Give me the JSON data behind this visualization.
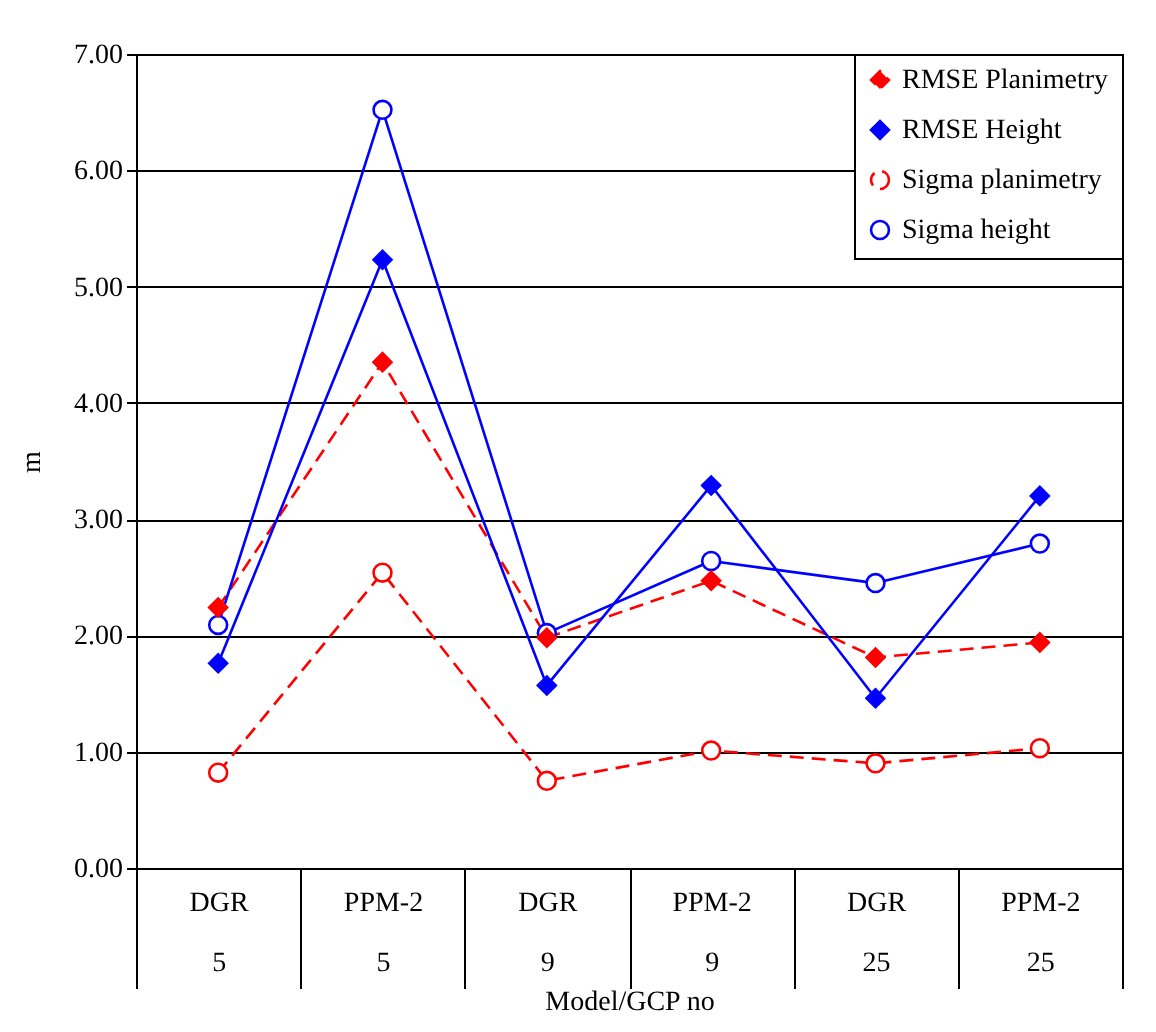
{
  "chart_data": {
    "type": "line",
    "xlabel": "Model/GCP no",
    "ylabel": "m",
    "categories": [
      "DGR\n5",
      "PPM-2\n5",
      "DGR\n9",
      "PPM-2\n9",
      "DGR\n25",
      "PPM-2\n25"
    ],
    "series": [
      {
        "name": "RMSE Planimetry",
        "color": "#ff0000",
        "marker": "diamond",
        "line_style": "dashed",
        "values": [
          2.24,
          4.35,
          1.98,
          2.47,
          1.81,
          1.94
        ]
      },
      {
        "name": "RMSE Height",
        "color": "#0000ff",
        "marker": "diamond",
        "line_style": "solid",
        "values": [
          1.76,
          5.23,
          1.57,
          3.29,
          1.46,
          3.2
        ]
      },
      {
        "name": "Sigma planimetry",
        "color": "#ff0000",
        "marker": "circle",
        "line_style": "dashed",
        "values": [
          0.82,
          2.54,
          0.75,
          1.01,
          0.9,
          1.03
        ]
      },
      {
        "name": "Sigma height",
        "color": "#0000ff",
        "marker": "circle",
        "line_style": "solid",
        "values": [
          2.09,
          6.52,
          2.02,
          2.64,
          2.45,
          2.79
        ]
      }
    ],
    "ylim": [
      0,
      7
    ],
    "yticks": [
      {
        "value": 0,
        "label": "0.00"
      },
      {
        "value": 1,
        "label": "1.00"
      },
      {
        "value": 2,
        "label": "2.00"
      },
      {
        "value": 3,
        "label": "3.00"
      },
      {
        "value": 4,
        "label": "4.00"
      },
      {
        "value": 5,
        "label": "5.00"
      },
      {
        "value": 6,
        "label": "6.00"
      },
      {
        "value": 7,
        "label": "7.00"
      }
    ],
    "grid": "y",
    "legend": "top right"
  }
}
